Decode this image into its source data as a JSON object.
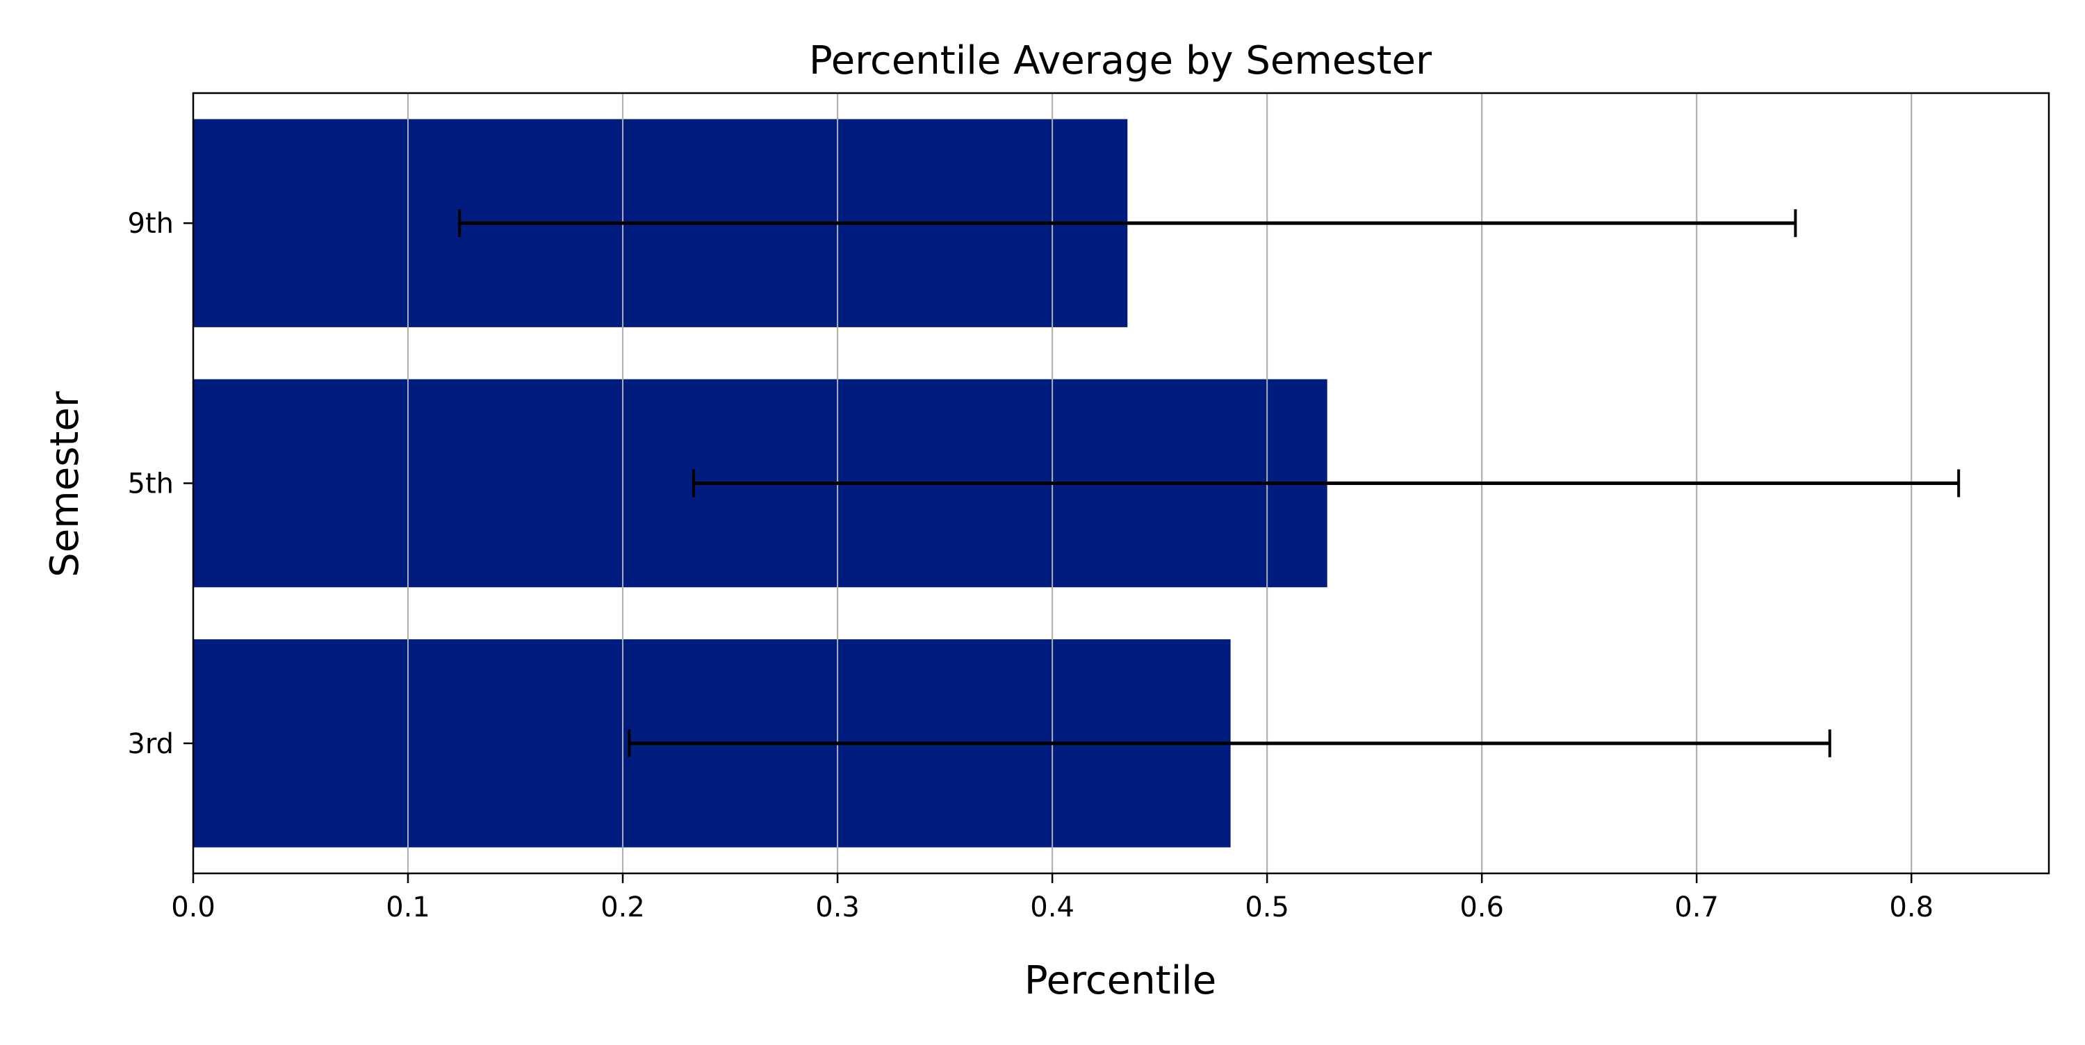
{
  "chart_data": {
    "type": "bar",
    "orientation": "horizontal",
    "title": "Percentile Average by Semester",
    "xlabel": "Percentile",
    "ylabel": "Semester",
    "categories": [
      "3rd",
      "5th",
      "9th"
    ],
    "values": [
      0.483,
      0.528,
      0.435
    ],
    "error_bars": [
      {
        "low": 0.203,
        "high": 0.762
      },
      {
        "low": 0.233,
        "high": 0.822
      },
      {
        "low": 0.124,
        "high": 0.746
      }
    ],
    "xlim": [
      0.0,
      0.864
    ],
    "xticks": [
      "0.0",
      "0.1",
      "0.2",
      "0.3",
      "0.4",
      "0.5",
      "0.6",
      "0.7",
      "0.8"
    ],
    "grid": "vertical",
    "bar_color": "#001c7f",
    "error_color": "#000000",
    "grid_color": "#b0b0b0"
  }
}
